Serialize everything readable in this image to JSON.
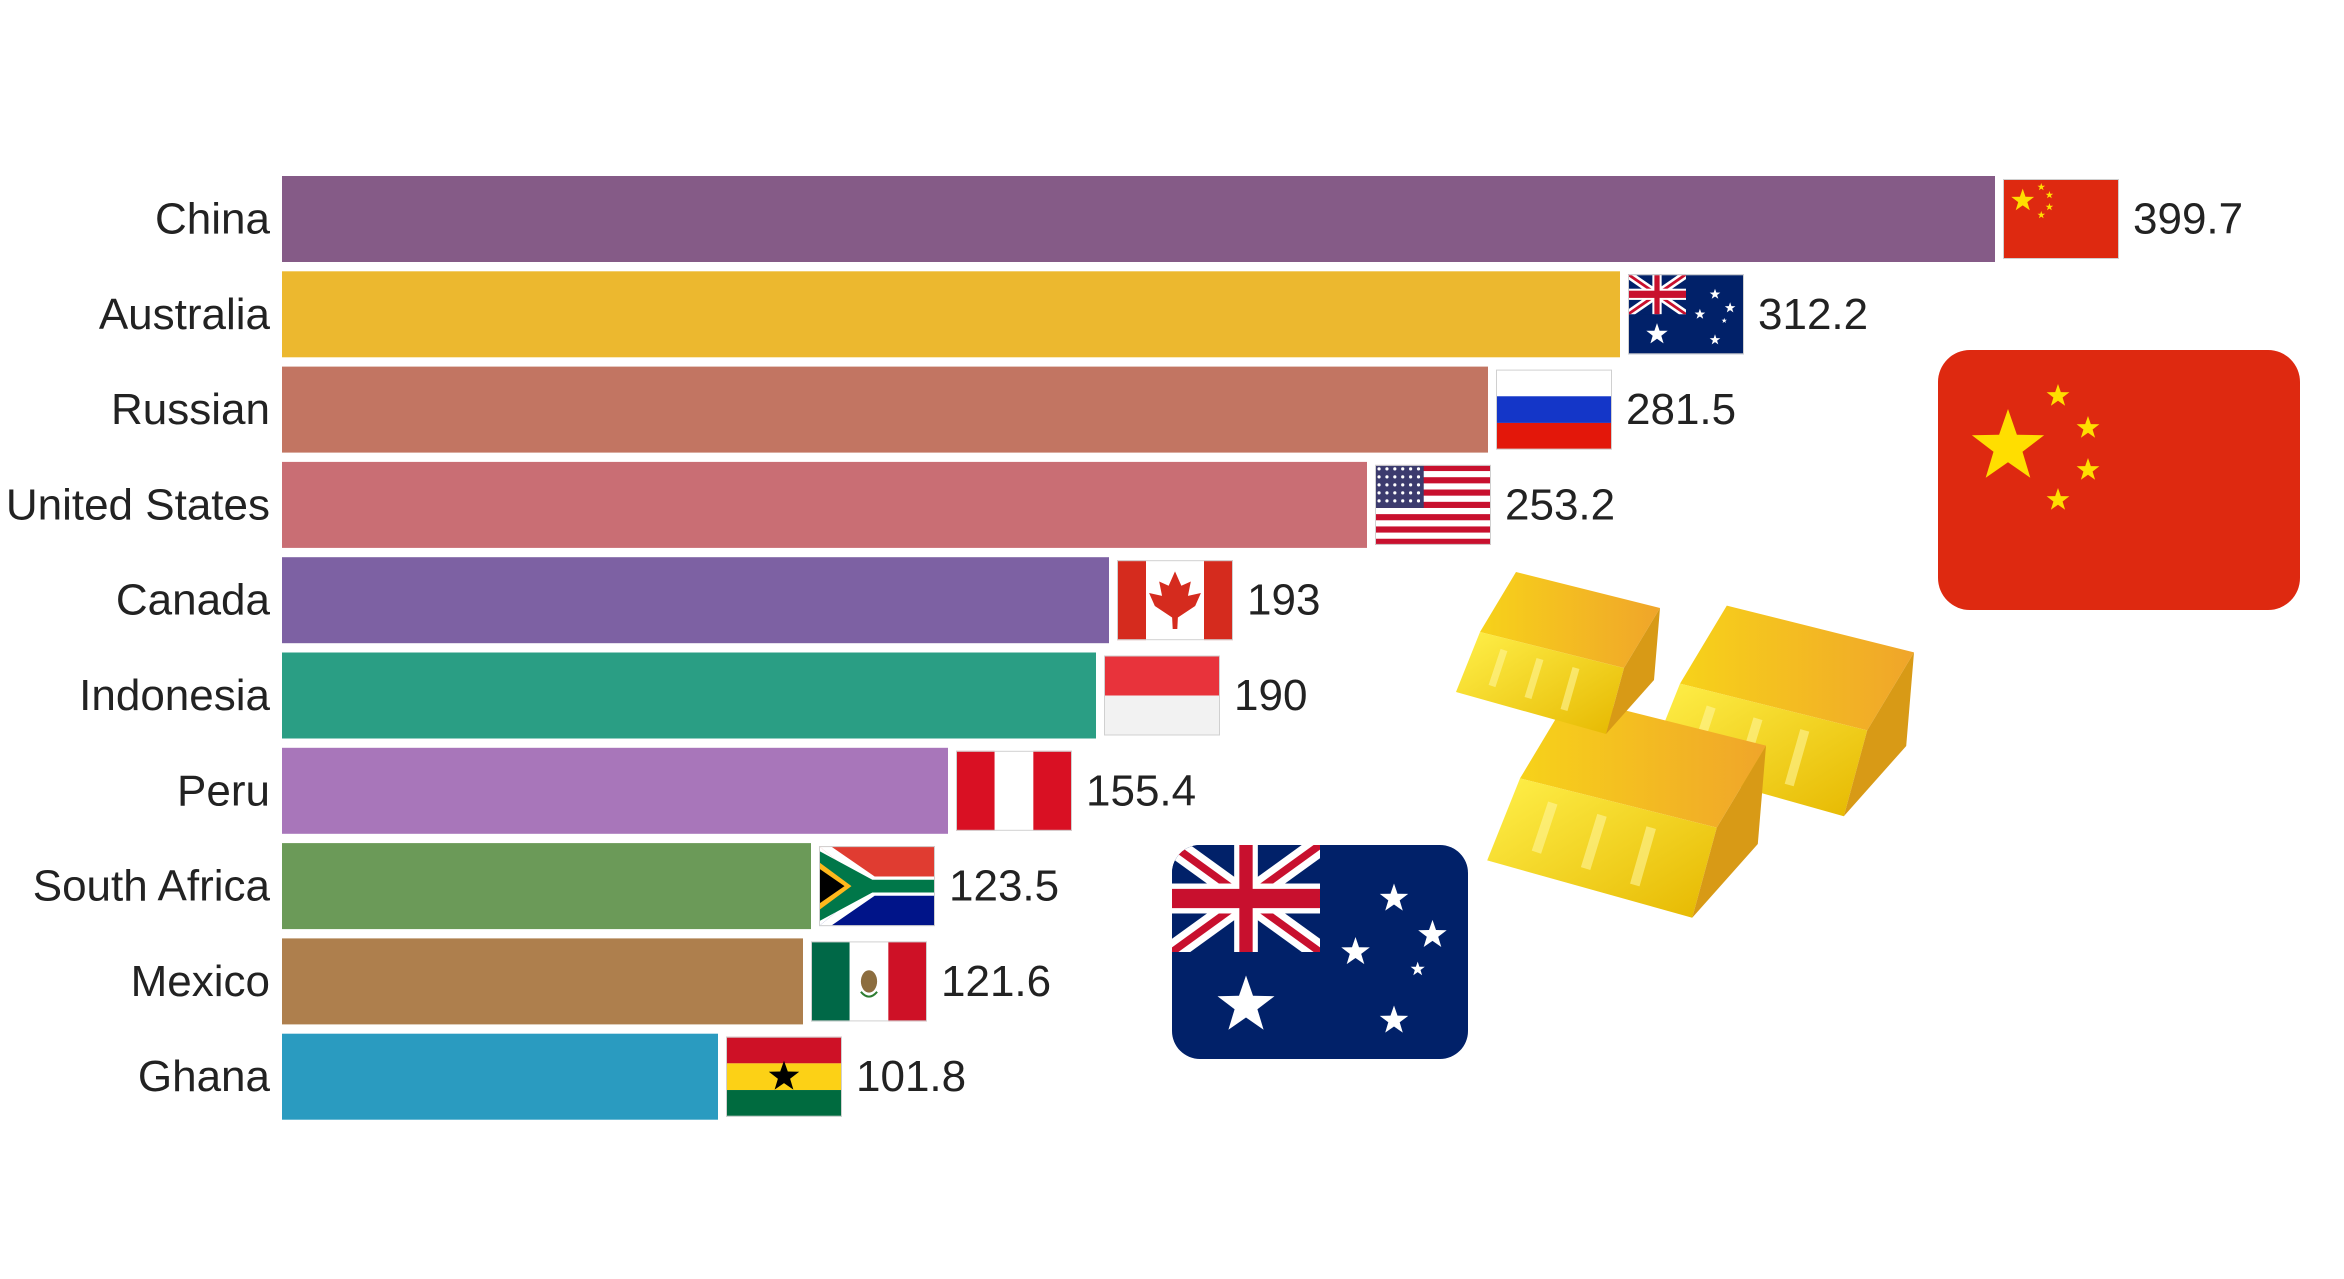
{
  "chart_data": {
    "type": "bar",
    "orientation": "horizontal",
    "categories": [
      "China",
      "Australia",
      "Russian",
      "United States",
      "Canada",
      "Indonesia",
      "Peru",
      "South Africa",
      "Mexico",
      "Ghana"
    ],
    "values": [
      399.7,
      312.2,
      281.5,
      253.2,
      193,
      190,
      155.4,
      123.5,
      121.6,
      101.8
    ],
    "value_labels": [
      "399.7",
      "312.2",
      "281.5",
      "253.2",
      "193",
      "190",
      "155.4",
      "123.5",
      "121.6",
      "101.8"
    ],
    "colors": [
      "#855b87",
      "#ecb82f",
      "#c27562",
      "#c96e74",
      "#7d61a3",
      "#2a9e84",
      "#a876ba",
      "#6b9a58",
      "#ae7f4d",
      "#2a9bc0"
    ],
    "flags": [
      "china-flag",
      "australia-flag",
      "russia-flag",
      "usa-flag",
      "canada-flag",
      "indonesia-flag",
      "peru-flag",
      "south-africa-flag",
      "mexico-flag",
      "ghana-flag"
    ],
    "title": "",
    "xlabel": "",
    "ylabel": "",
    "xlim": [
      0,
      399.7
    ],
    "grid": false,
    "legend": "none"
  },
  "decorations": {
    "large_icons": [
      "china-flag-icon",
      "gold-bars-icon",
      "australia-flag-icon"
    ]
  }
}
